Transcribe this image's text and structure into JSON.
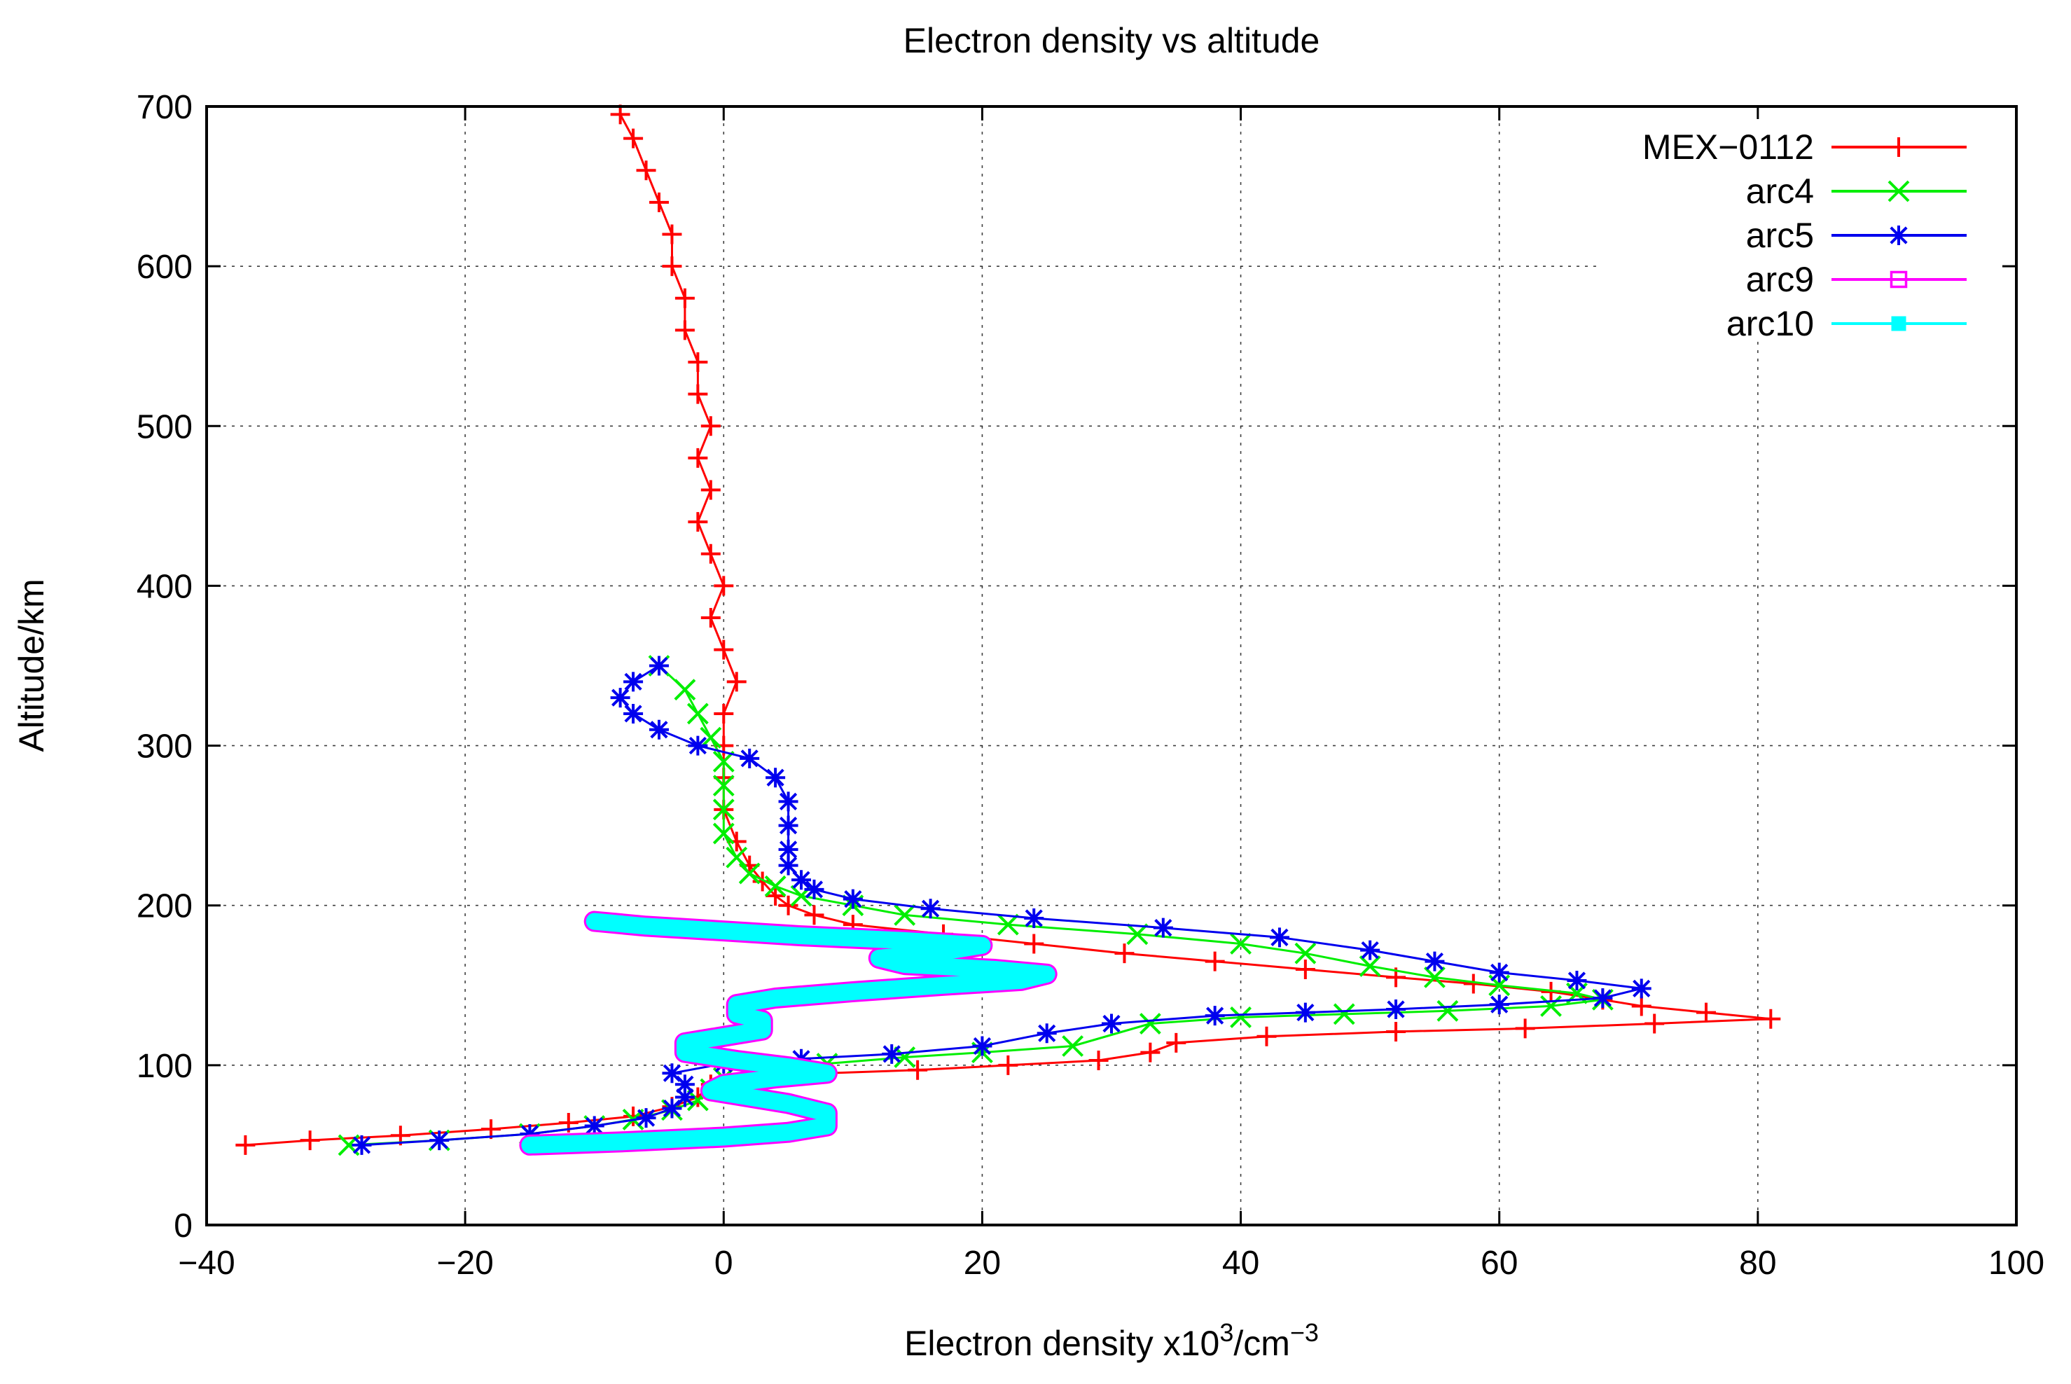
{
  "chart_data": {
    "type": "line",
    "title": "Electron density vs altitude",
    "xlabel": "Electron density x10",
    "xlabel_sup1": "3",
    "xlabel_mid": "/cm",
    "xlabel_sup2": "−3",
    "ylabel": "Altitude/km",
    "xlim": [
      -40,
      100
    ],
    "ylim": [
      0,
      700
    ],
    "xticks": [
      -40,
      -20,
      0,
      20,
      40,
      60,
      80,
      100
    ],
    "yticks": [
      0,
      100,
      200,
      300,
      400,
      500,
      600,
      700
    ],
    "xtick_labels": [
      "−40",
      "−20",
      "0",
      "20",
      "40",
      "60",
      "80",
      "100"
    ],
    "ytick_labels": [
      "0",
      "100",
      "200",
      "300",
      "400",
      "500",
      "600",
      "700"
    ],
    "grid": true,
    "legend_position": "top-right",
    "series": [
      {
        "name": "MEX−0112",
        "color": "#ff0000",
        "marker": "plus",
        "points": [
          [
            -37,
            50
          ],
          [
            -32,
            53
          ],
          [
            -25,
            56
          ],
          [
            -18,
            60
          ],
          [
            -12,
            64
          ],
          [
            -7,
            68
          ],
          [
            -4,
            74
          ],
          [
            -2,
            80
          ],
          [
            -1,
            88
          ],
          [
            2,
            92
          ],
          [
            8,
            95
          ],
          [
            15,
            97
          ],
          [
            22,
            100
          ],
          [
            29,
            103
          ],
          [
            33,
            108
          ],
          [
            35,
            114
          ],
          [
            42,
            118
          ],
          [
            52,
            121
          ],
          [
            62,
            123
          ],
          [
            72,
            126
          ],
          [
            81,
            129
          ],
          [
            76,
            133
          ],
          [
            71,
            137
          ],
          [
            68,
            141
          ],
          [
            64,
            146
          ],
          [
            58,
            151
          ],
          [
            52,
            155
          ],
          [
            45,
            160
          ],
          [
            38,
            165
          ],
          [
            31,
            170
          ],
          [
            24,
            176
          ],
          [
            17,
            182
          ],
          [
            10,
            188
          ],
          [
            7,
            194
          ],
          [
            5,
            200
          ],
          [
            4,
            206
          ],
          [
            3,
            215
          ],
          [
            2,
            225
          ],
          [
            1,
            240
          ],
          [
            0,
            260
          ],
          [
            0,
            280
          ],
          [
            0,
            300
          ],
          [
            0,
            320
          ],
          [
            1,
            340
          ],
          [
            0,
            360
          ],
          [
            -1,
            380
          ],
          [
            0,
            400
          ],
          [
            -1,
            420
          ],
          [
            -2,
            440
          ],
          [
            -1,
            460
          ],
          [
            -2,
            480
          ],
          [
            -1,
            500
          ],
          [
            -2,
            520
          ],
          [
            -2,
            540
          ],
          [
            -3,
            560
          ],
          [
            -3,
            580
          ],
          [
            -4,
            600
          ],
          [
            -4,
            620
          ],
          [
            -5,
            640
          ],
          [
            -6,
            660
          ],
          [
            -7,
            680
          ],
          [
            -8,
            695
          ]
        ]
      },
      {
        "name": "arc4",
        "color": "#00ee00",
        "marker": "cross",
        "points": [
          [
            -29,
            50
          ],
          [
            -22,
            53
          ],
          [
            -15,
            57
          ],
          [
            -10,
            62
          ],
          [
            -7,
            66
          ],
          [
            -4,
            72
          ],
          [
            -2,
            78
          ],
          [
            -1,
            85
          ],
          [
            0,
            92
          ],
          [
            3,
            97
          ],
          [
            8,
            101
          ],
          [
            14,
            105
          ],
          [
            20,
            108
          ],
          [
            27,
            112
          ],
          [
            33,
            126
          ],
          [
            40,
            130
          ],
          [
            48,
            132
          ],
          [
            56,
            134
          ],
          [
            64,
            137
          ],
          [
            68,
            141
          ],
          [
            66,
            145
          ],
          [
            60,
            150
          ],
          [
            55,
            155
          ],
          [
            50,
            162
          ],
          [
            45,
            170
          ],
          [
            40,
            176
          ],
          [
            32,
            182
          ],
          [
            22,
            188
          ],
          [
            14,
            194
          ],
          [
            10,
            200
          ],
          [
            6,
            206
          ],
          [
            4,
            212
          ],
          [
            2,
            220
          ],
          [
            1,
            230
          ],
          [
            0,
            245
          ],
          [
            0,
            260
          ],
          [
            0,
            275
          ],
          [
            0,
            290
          ],
          [
            -1,
            305
          ],
          [
            -2,
            320
          ],
          [
            -3,
            335
          ],
          [
            -5,
            350
          ]
        ]
      },
      {
        "name": "arc5",
        "color": "#0000ee",
        "marker": "star",
        "points": [
          [
            -28,
            50
          ],
          [
            -22,
            53
          ],
          [
            -15,
            57
          ],
          [
            -10,
            62
          ],
          [
            -6,
            67
          ],
          [
            -4,
            73
          ],
          [
            -3,
            80
          ],
          [
            -3,
            88
          ],
          [
            -4,
            95
          ],
          [
            0,
            101
          ],
          [
            6,
            104
          ],
          [
            13,
            107
          ],
          [
            20,
            112
          ],
          [
            25,
            120
          ],
          [
            30,
            126
          ],
          [
            38,
            131
          ],
          [
            45,
            133
          ],
          [
            52,
            135
          ],
          [
            60,
            138
          ],
          [
            68,
            142
          ],
          [
            71,
            148
          ],
          [
            66,
            153
          ],
          [
            60,
            158
          ],
          [
            55,
            165
          ],
          [
            50,
            172
          ],
          [
            43,
            180
          ],
          [
            34,
            186
          ],
          [
            24,
            192
          ],
          [
            16,
            198
          ],
          [
            10,
            204
          ],
          [
            7,
            210
          ],
          [
            6,
            216
          ],
          [
            5,
            225
          ],
          [
            5,
            235
          ],
          [
            5,
            250
          ],
          [
            5,
            265
          ],
          [
            4,
            280
          ],
          [
            2,
            292
          ],
          [
            -2,
            300
          ],
          [
            -5,
            310
          ],
          [
            -7,
            320
          ],
          [
            -8,
            330
          ],
          [
            -7,
            340
          ],
          [
            -5,
            350
          ]
        ]
      },
      {
        "name": "arc9",
        "color": "#ff00ff",
        "marker": "open-square",
        "points": [
          [
            -15,
            50
          ],
          [
            -8,
            52
          ],
          [
            0,
            55
          ],
          [
            5,
            58
          ],
          [
            8,
            62
          ],
          [
            8,
            70
          ],
          [
            5,
            76
          ],
          [
            2,
            80
          ],
          [
            -1,
            84
          ],
          [
            0,
            88
          ],
          [
            4,
            92
          ],
          [
            8,
            95
          ],
          [
            5,
            99
          ],
          [
            1,
            103
          ],
          [
            -3,
            108
          ],
          [
            -3,
            114
          ],
          [
            0,
            118
          ],
          [
            3,
            122
          ],
          [
            3,
            128
          ],
          [
            1,
            132
          ],
          [
            1,
            138
          ],
          [
            4,
            142
          ],
          [
            10,
            146
          ],
          [
            17,
            150
          ],
          [
            23,
            153
          ],
          [
            25,
            157
          ],
          [
            21,
            160
          ],
          [
            14,
            163
          ],
          [
            12,
            167
          ],
          [
            17,
            171
          ],
          [
            20,
            175
          ],
          [
            14,
            178
          ],
          [
            6,
            181
          ],
          [
            0,
            184
          ],
          [
            -6,
            187
          ],
          [
            -10,
            190
          ]
        ]
      },
      {
        "name": "arc10",
        "color": "#00ffff",
        "marker": "filled-square",
        "points": [
          [
            -15,
            50
          ],
          [
            -8,
            52
          ],
          [
            0,
            55
          ],
          [
            5,
            58
          ],
          [
            8,
            62
          ],
          [
            8,
            70
          ],
          [
            5,
            76
          ],
          [
            2,
            80
          ],
          [
            -1,
            84
          ],
          [
            0,
            88
          ],
          [
            4,
            92
          ],
          [
            8,
            95
          ],
          [
            5,
            99
          ],
          [
            1,
            103
          ],
          [
            -3,
            108
          ],
          [
            -3,
            114
          ],
          [
            0,
            118
          ],
          [
            3,
            122
          ],
          [
            3,
            128
          ],
          [
            1,
            132
          ],
          [
            1,
            138
          ],
          [
            4,
            142
          ],
          [
            10,
            146
          ],
          [
            17,
            150
          ],
          [
            23,
            153
          ],
          [
            25,
            157
          ],
          [
            21,
            160
          ],
          [
            14,
            163
          ],
          [
            12,
            167
          ],
          [
            17,
            171
          ],
          [
            20,
            175
          ],
          [
            14,
            178
          ],
          [
            6,
            181
          ],
          [
            0,
            184
          ],
          [
            -6,
            187
          ],
          [
            -10,
            190
          ]
        ]
      }
    ]
  }
}
